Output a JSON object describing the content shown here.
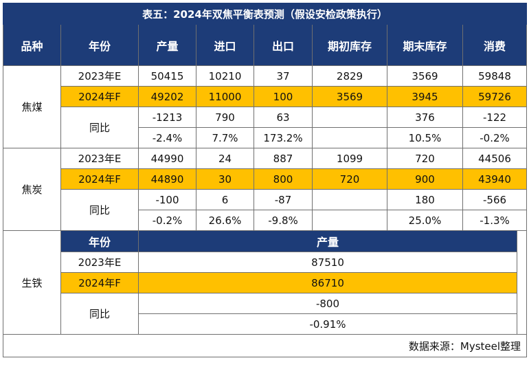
{
  "title": "表五：2024年双焦平衡表预测（假设安检政策执行）",
  "headers": [
    "品种",
    "年份",
    "产量",
    "进口",
    "出口",
    "期初库存",
    "期末库存",
    "消费"
  ],
  "coking_coal": {
    "name": "焦煤",
    "row_2023": {
      "year": "2023年E",
      "output": "50415",
      "import": "10210",
      "export": "37",
      "begin_stock": "2829",
      "end_stock": "3569",
      "consumption": "59848"
    },
    "row_2024": {
      "year": "2024年F",
      "output": "49202",
      "import": "11000",
      "export": "100",
      "begin_stock": "3569",
      "end_stock": "3945",
      "consumption": "59726"
    },
    "yoy_label": "同比",
    "yoy_abs": {
      "output": "-1213",
      "import": "790",
      "export": "63",
      "begin_stock": "",
      "end_stock": "376",
      "consumption": "-122"
    },
    "yoy_pct": {
      "output": "-2.4%",
      "import": "7.7%",
      "export": "173.2%",
      "begin_stock": "",
      "end_stock": "10.5%",
      "consumption": "-0.2%"
    }
  },
  "coke": {
    "name": "焦炭",
    "row_2023": {
      "year": "2023年E",
      "output": "44990",
      "import": "24",
      "export": "887",
      "begin_stock": "1099",
      "end_stock": "720",
      "consumption": "44506"
    },
    "row_2024": {
      "year": "2024年F",
      "output": "44890",
      "import": "30",
      "export": "800",
      "begin_stock": "720",
      "end_stock": "900",
      "consumption": "43940"
    },
    "yoy_label": "同比",
    "yoy_abs": {
      "output": "-100",
      "import": "6",
      "export": "-87",
      "begin_stock": "",
      "end_stock": "180",
      "consumption": "-566"
    },
    "yoy_pct": {
      "output": "-0.2%",
      "import": "26.6%",
      "export": "-9.8%",
      "begin_stock": "",
      "end_stock": "25.0%",
      "consumption": "-1.3%"
    }
  },
  "pig_iron": {
    "name": "生铁",
    "header_year": "年份",
    "header_output": "产量",
    "row_2023": {
      "year": "2023年E",
      "output": "87510"
    },
    "row_2024": {
      "year": "2024年F",
      "output": "86710"
    },
    "yoy_label": "同比",
    "yoy_abs": "-800",
    "yoy_pct": "-0.91%"
  },
  "source": "数据来源：Mysteel整理",
  "colors": {
    "header_bg": "#1d3c78",
    "highlight": "#ffc000",
    "positive": "#d7201f",
    "negative": "#1e9b49"
  }
}
